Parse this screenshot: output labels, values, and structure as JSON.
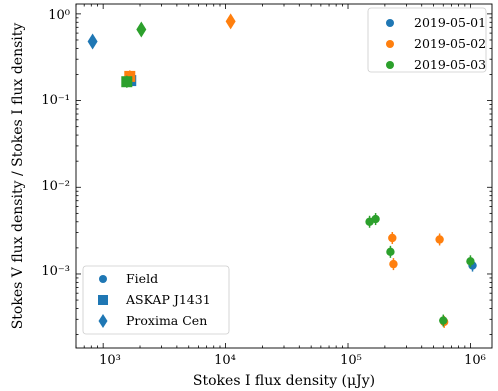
{
  "chart_data": {
    "type": "scatter",
    "title": "",
    "xlabel": "Stokes I flux density (μJy)",
    "ylabel": "Stokes V flux density / Stokes I flux density",
    "xscale": "log",
    "yscale": "log",
    "xlim": [
      600,
      1500000
    ],
    "ylim": [
      0.00014,
      1.3
    ],
    "x_tick_labels": [
      "10³",
      "10⁴",
      "10⁵",
      "10⁶"
    ],
    "y_tick_labels": [
      "10⁻³",
      "10⁻²",
      "10⁻¹",
      "10⁰"
    ],
    "color_legend": {
      "location": "top-right",
      "entries": [
        {
          "label": "2019-05-01",
          "color": "#1f77b4"
        },
        {
          "label": "2019-05-02",
          "color": "#ff7f0e"
        },
        {
          "label": "2019-05-03",
          "color": "#2ca02c"
        }
      ]
    },
    "marker_legend": {
      "location": "bottom-left",
      "entries": [
        {
          "label": "Field",
          "marker": "circle"
        },
        {
          "label": "ASKAP J1431",
          "marker": "square"
        },
        {
          "label": "Proxima Cen",
          "marker": "diamond"
        }
      ]
    },
    "points": [
      {
        "x": 820,
        "y": 0.48,
        "date": "2019-05-01",
        "source": "Proxima Cen"
      },
      {
        "x": 11000,
        "y": 0.82,
        "date": "2019-05-02",
        "source": "Proxima Cen"
      },
      {
        "x": 2050,
        "y": 0.66,
        "date": "2019-05-03",
        "source": "Proxima Cen"
      },
      {
        "x": 1680,
        "y": 0.17,
        "date": "2019-05-01",
        "source": "ASKAP J1431"
      },
      {
        "x": 1650,
        "y": 0.19,
        "date": "2019-05-02",
        "source": "ASKAP J1431"
      },
      {
        "x": 1560,
        "y": 0.165,
        "date": "2019-05-03",
        "source": "ASKAP J1431"
      },
      {
        "x": 150000,
        "y": 0.004,
        "date": "2019-05-03",
        "source": "Field"
      },
      {
        "x": 168000,
        "y": 0.0043,
        "date": "2019-05-03",
        "source": "Field"
      },
      {
        "x": 230000,
        "y": 0.0026,
        "date": "2019-05-02",
        "source": "Field"
      },
      {
        "x": 222000,
        "y": 0.0018,
        "date": "2019-05-03",
        "source": "Field"
      },
      {
        "x": 235000,
        "y": 0.0013,
        "date": "2019-05-02",
        "source": "Field"
      },
      {
        "x": 560000,
        "y": 0.0025,
        "date": "2019-05-02",
        "source": "Field"
      },
      {
        "x": 1040000,
        "y": 0.00125,
        "date": "2019-05-01",
        "source": "Field"
      },
      {
        "x": 1000000,
        "y": 0.0014,
        "date": "2019-05-03",
        "source": "Field"
      },
      {
        "x": 610000,
        "y": 0.00028,
        "date": "2019-05-02",
        "source": "Field"
      },
      {
        "x": 600000,
        "y": 0.00029,
        "date": "2019-05-03",
        "source": "Field"
      }
    ]
  }
}
